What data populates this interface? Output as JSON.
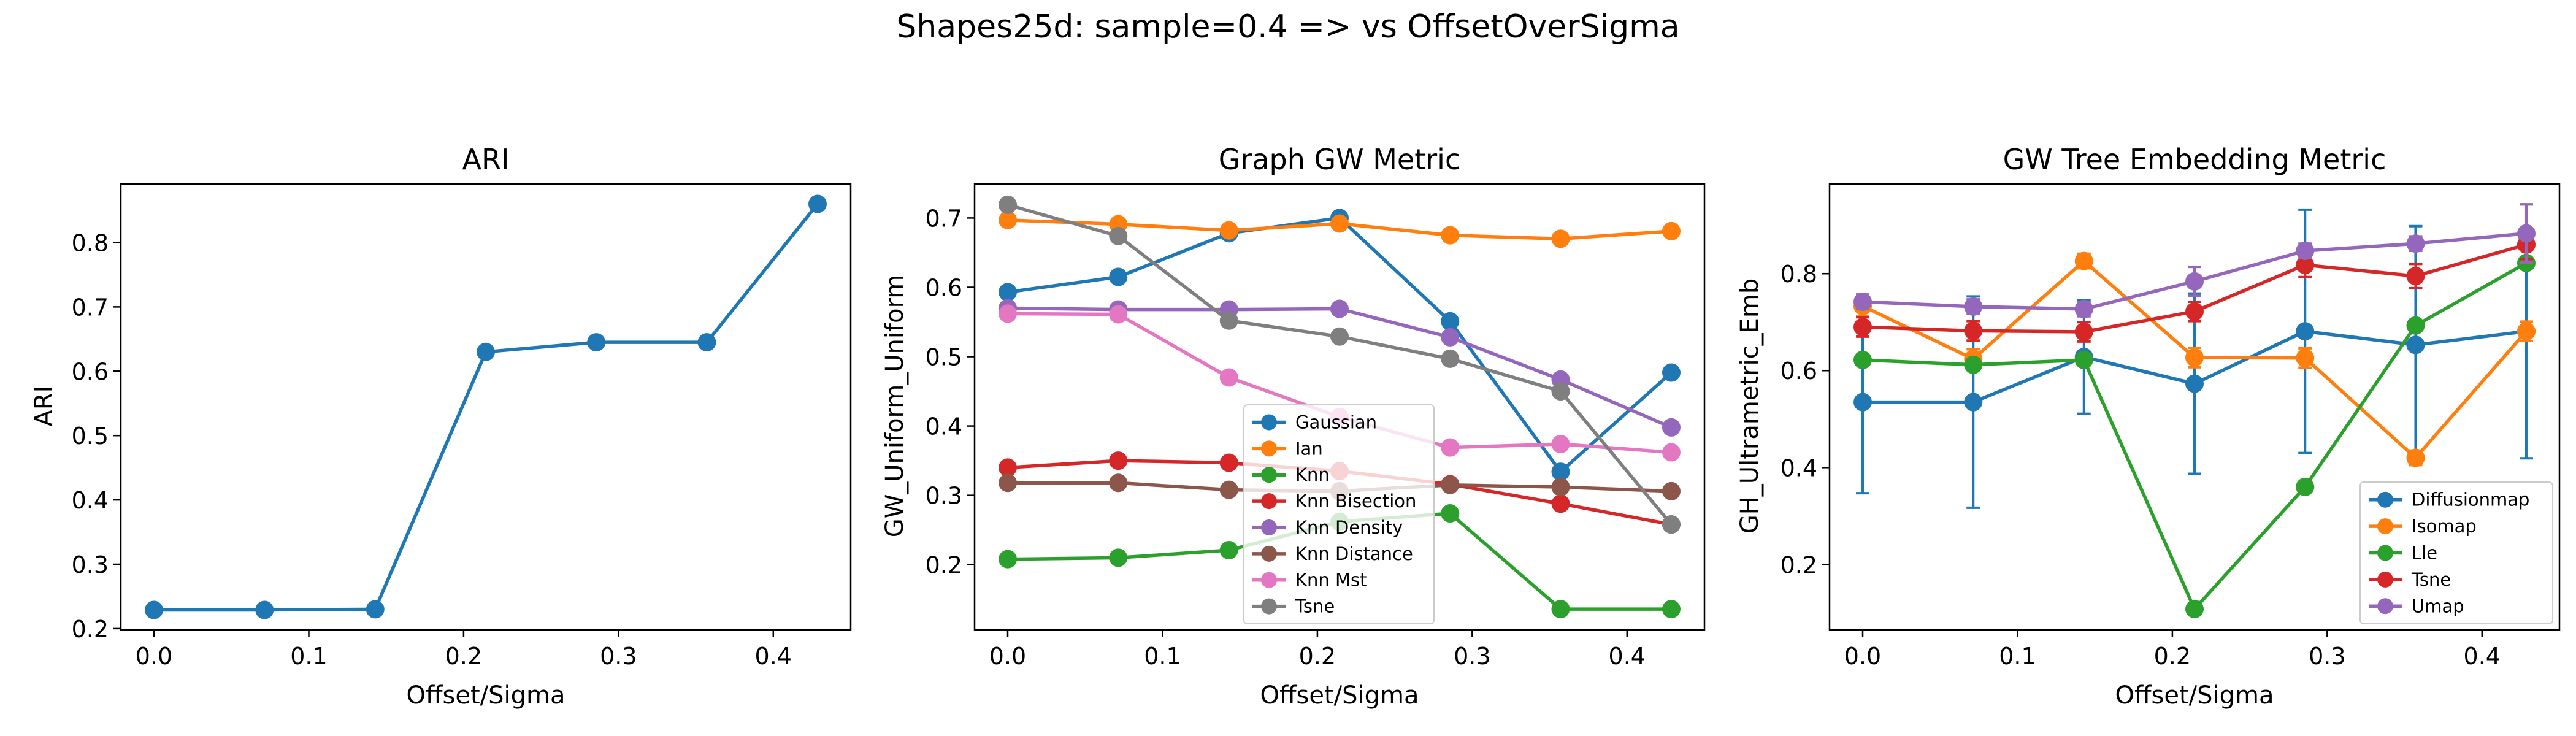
{
  "figure": {
    "suptitle": "Shapes25d: sample=0.4 => vs OffsetOverSigma"
  },
  "chart_data": [
    {
      "type": "line",
      "title": "ARI",
      "xlabel": "Offset/Sigma",
      "ylabel": "ARI",
      "xlim": [
        -0.0214,
        0.45
      ],
      "ylim": [
        0.198,
        0.891
      ],
      "xticks": [
        0.0,
        0.1,
        0.2,
        0.3,
        0.4
      ],
      "yticks": [
        0.2,
        0.3,
        0.4,
        0.5,
        0.6,
        0.7,
        0.8
      ],
      "x": [
        0.0,
        0.0714,
        0.1429,
        0.2143,
        0.2857,
        0.3571,
        0.4286
      ],
      "series": [
        {
          "values": [
            0.229,
            0.229,
            0.23,
            0.63,
            0.645,
            0.645,
            0.86
          ],
          "color": "#1f77b4"
        }
      ]
    },
    {
      "type": "line",
      "title": "Graph GW Metric",
      "xlabel": "Offset/Sigma",
      "ylabel": "GW_Uniform_Uniform",
      "xlim": [
        -0.0214,
        0.45
      ],
      "ylim": [
        0.106,
        0.749
      ],
      "xticks": [
        0.0,
        0.1,
        0.2,
        0.3,
        0.4
      ],
      "yticks": [
        0.2,
        0.3,
        0.4,
        0.5,
        0.6,
        0.7
      ],
      "legend": "lower-center",
      "x": [
        0.0,
        0.0714,
        0.1429,
        0.2143,
        0.2857,
        0.3571,
        0.4286
      ],
      "series": [
        {
          "name": "Gaussian",
          "color": "#1f77b4",
          "values": [
            0.593,
            0.615,
            0.678,
            0.7,
            0.551,
            0.334,
            0.477
          ]
        },
        {
          "name": "Ian",
          "color": "#ff7f0e",
          "values": [
            0.697,
            0.691,
            0.682,
            0.692,
            0.675,
            0.67,
            0.681
          ]
        },
        {
          "name": "Knn",
          "color": "#2ca02c",
          "values": [
            0.208,
            0.21,
            0.221,
            0.262,
            0.274,
            0.136,
            0.136
          ]
        },
        {
          "name": "Knn Bisection",
          "color": "#d62728",
          "values": [
            0.34,
            0.35,
            0.347,
            0.335,
            0.316,
            0.288,
            0.258
          ]
        },
        {
          "name": "Knn Density",
          "color": "#9467bd",
          "values": [
            0.57,
            0.568,
            0.568,
            0.569,
            0.528,
            0.467,
            0.398
          ]
        },
        {
          "name": "Knn Distance",
          "color": "#8c564b",
          "values": [
            0.318,
            0.318,
            0.308,
            0.306,
            0.315,
            0.312,
            0.306
          ]
        },
        {
          "name": "Knn Mst",
          "color": "#e377c2",
          "values": [
            0.562,
            0.561,
            0.47,
            0.413,
            0.369,
            0.374,
            0.362
          ]
        },
        {
          "name": "Tsne",
          "color": "#7f7f7f",
          "values": [
            0.719,
            0.674,
            0.552,
            0.529,
            0.497,
            0.45,
            0.258
          ]
        }
      ]
    },
    {
      "type": "line",
      "title": "GW Tree Embedding Metric",
      "xlabel": "Offset/Sigma",
      "ylabel": "GH_Ultrametric_Emb",
      "xlim": [
        -0.0214,
        0.45
      ],
      "ylim": [
        0.065,
        0.985
      ],
      "xticks": [
        0.0,
        0.1,
        0.2,
        0.3,
        0.4
      ],
      "yticks": [
        0.2,
        0.4,
        0.6,
        0.8
      ],
      "legend": "lower-right",
      "error_bars": true,
      "x": [
        0.0,
        0.0714,
        0.1429,
        0.2143,
        0.2857,
        0.3571,
        0.4286
      ],
      "series": [
        {
          "name": "Diffusionmap",
          "color": "#1f77b4",
          "values": [
            0.535,
            0.535,
            0.628,
            0.573,
            0.681,
            0.653,
            0.681
          ],
          "err": [
            0.188,
            0.218,
            0.117,
            0.186,
            0.251,
            0.245,
            0.262
          ]
        },
        {
          "name": "Isomap",
          "color": "#ff7f0e",
          "values": [
            0.733,
            0.624,
            0.826,
            0.627,
            0.626,
            0.42,
            0.681
          ],
          "err": [
            0.02,
            0.02,
            0.015,
            0.02,
            0.02,
            0.015,
            0.02
          ]
        },
        {
          "name": "Lle",
          "color": "#2ca02c",
          "values": [
            0.622,
            0.612,
            0.622,
            0.108,
            0.36,
            0.693,
            0.822
          ],
          "err": [
            0.01,
            0.01,
            0.01,
            0.01,
            0.01,
            0.01,
            0.01
          ]
        },
        {
          "name": "Tsne",
          "color": "#d62728",
          "values": [
            0.69,
            0.682,
            0.68,
            0.722,
            0.818,
            0.795,
            0.86
          ],
          "err": [
            0.02,
            0.02,
            0.02,
            0.02,
            0.025,
            0.025,
            0.03
          ]
        },
        {
          "name": "Umap",
          "color": "#9467bd",
          "values": [
            0.742,
            0.732,
            0.727,
            0.784,
            0.847,
            0.862,
            0.883
          ],
          "err": [
            0.015,
            0.015,
            0.015,
            0.03,
            0.015,
            0.015,
            0.06
          ]
        }
      ]
    }
  ]
}
